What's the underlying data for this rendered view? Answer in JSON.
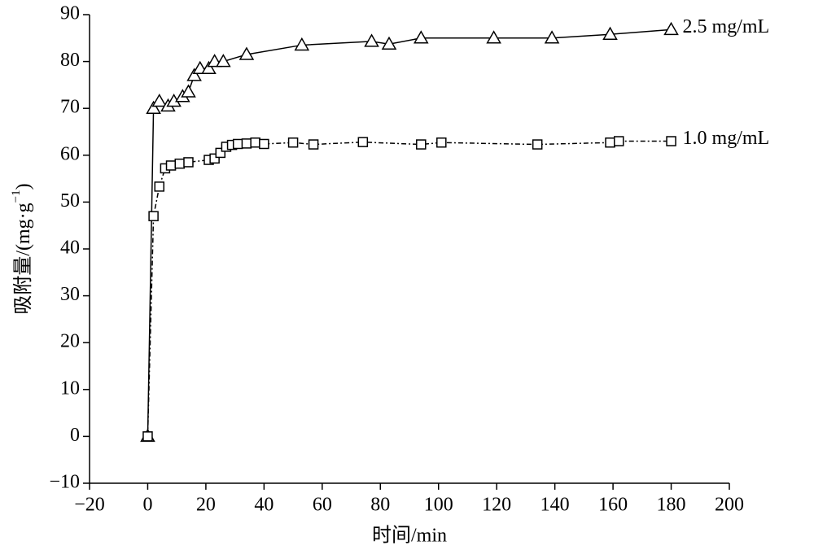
{
  "chart_data": {
    "type": "line",
    "x_label": "时间/min",
    "y_label": {
      "text": "吸附量/(mg·g",
      "superscript": "−1",
      "close": ")"
    },
    "xlim": [
      -20,
      200
    ],
    "xticks": [
      {
        "value": -20,
        "label": "−20"
      },
      0,
      20,
      40,
      60,
      80,
      100,
      120,
      140,
      160,
      180,
      200
    ],
    "ylim": [
      -10,
      90
    ],
    "yticks": [
      {
        "value": -10,
        "label": "−10"
      },
      0,
      10,
      20,
      30,
      40,
      50,
      60,
      70,
      80,
      90
    ],
    "series": [
      {
        "name": "2.5 mg/mL",
        "color": "#000000",
        "marker": "triangle",
        "x": [
          0,
          2,
          4,
          7,
          9,
          12,
          14,
          16,
          18,
          21,
          23,
          26,
          34,
          53,
          77,
          83,
          94,
          119,
          139,
          159,
          180
        ],
        "values": [
          0,
          70,
          71.5,
          70.5,
          71.5,
          72.5,
          73.5,
          77,
          78.5,
          78.5,
          80,
          80,
          81.5,
          83.5,
          84.3,
          83.7,
          85,
          85,
          85,
          85.8,
          86.8
        ]
      },
      {
        "name": "1.0 mg/mL",
        "color": "#000000",
        "marker": "square",
        "x": [
          0,
          2,
          4,
          6,
          8,
          11,
          14,
          21,
          23,
          25,
          27,
          29,
          31,
          34,
          37,
          40,
          50,
          57,
          74,
          94,
          101,
          134,
          159,
          162,
          180
        ],
        "values": [
          0,
          47,
          53.3,
          57.2,
          57.8,
          58.2,
          58.5,
          59,
          59.3,
          60.5,
          61.8,
          62.2,
          62.4,
          62.5,
          62.7,
          62.4,
          62.7,
          62.3,
          62.8,
          62.3,
          62.7,
          62.3,
          62.7,
          63,
          63
        ]
      }
    ]
  }
}
